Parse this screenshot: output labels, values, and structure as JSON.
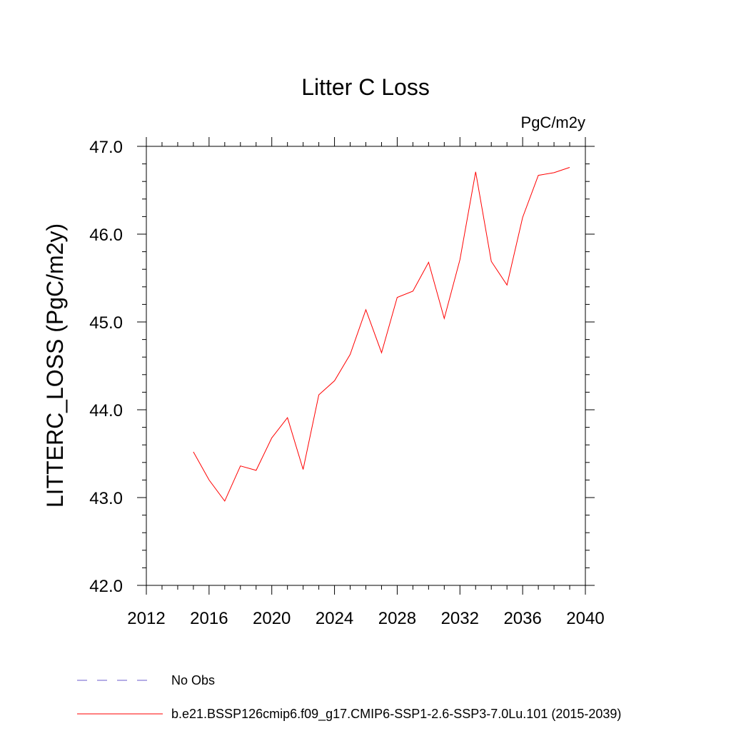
{
  "chart_data": {
    "type": "line",
    "title": "Litter C Loss",
    "units_label": "PgC/m2y",
    "ylabel": "LITTERC_LOSS  (PgC/m2y)",
    "xlabel": "",
    "xlim": [
      2012,
      2040
    ],
    "ylim": [
      42.0,
      47.0
    ],
    "x_ticks": [
      2012,
      2016,
      2020,
      2024,
      2028,
      2032,
      2036,
      2040
    ],
    "x_tick_labels": [
      "2012",
      "2016",
      "2020",
      "2024",
      "2028",
      "2032",
      "2036",
      "2040"
    ],
    "y_ticks": [
      42.0,
      43.0,
      44.0,
      45.0,
      46.0,
      47.0
    ],
    "y_tick_labels": [
      "42.0",
      "43.0",
      "44.0",
      "45.0",
      "46.0",
      "47.0"
    ],
    "grid": false,
    "legend_position": "bottom",
    "legend": [
      {
        "label": "No Obs",
        "color": "#6a5acd",
        "style": "dashed"
      },
      {
        "label": "b.e21.BSSP126cmip6.f09_g17.CMIP6-SSP1-2.6-SSP3-7.0Lu.101 (2015-2039)",
        "color": "#ff0000",
        "style": "solid"
      }
    ],
    "series": [
      {
        "color": "#ff0000",
        "x": [
          2015,
          2016,
          2017,
          2018,
          2019,
          2020,
          2021,
          2022,
          2023,
          2024,
          2025,
          2026,
          2027,
          2028,
          2029,
          2030,
          2031,
          2032,
          2033,
          2034,
          2035,
          2036,
          2037,
          2038,
          2039
        ],
        "y": [
          43.52,
          43.2,
          42.96,
          43.36,
          43.31,
          43.68,
          43.91,
          43.32,
          44.17,
          44.33,
          44.63,
          45.14,
          44.65,
          45.28,
          45.35,
          45.68,
          45.04,
          45.71,
          46.71,
          45.69,
          45.42,
          46.19,
          46.67,
          46.7,
          46.76
        ]
      }
    ]
  }
}
